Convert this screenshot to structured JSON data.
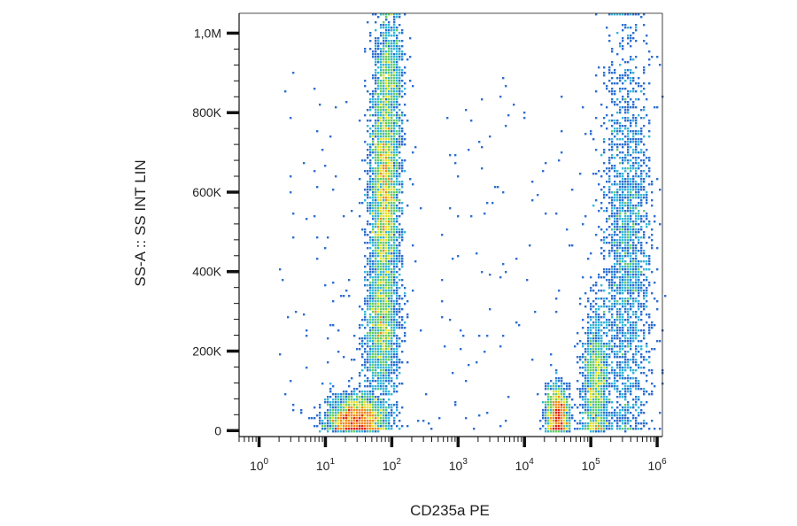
{
  "chart_data": {
    "type": "scatter",
    "subtype": "flow-cytometry-density-dot-plot",
    "xlabel": "CD235a PE",
    "ylabel": "SS-A :: SS INT LIN",
    "x_scale": "log",
    "y_scale": "linear",
    "xlim": [
      0.5,
      1200000
    ],
    "ylim": [
      -15000,
      1050000
    ],
    "x_ticks": [
      {
        "value": 1,
        "base": "10",
        "exp": "0"
      },
      {
        "value": 10,
        "base": "10",
        "exp": "1"
      },
      {
        "value": 100,
        "base": "10",
        "exp": "2"
      },
      {
        "value": 1000,
        "base": "10",
        "exp": "3"
      },
      {
        "value": 10000,
        "base": "10",
        "exp": "4"
      },
      {
        "value": 100000,
        "base": "10",
        "exp": "5"
      },
      {
        "value": 1000000,
        "base": "10",
        "exp": "6"
      }
    ],
    "y_ticks": [
      {
        "value": 0,
        "label": "0"
      },
      {
        "value": 200000,
        "label": "200K"
      },
      {
        "value": 400000,
        "label": "400K"
      },
      {
        "value": 600000,
        "label": "600K"
      },
      {
        "value": 800000,
        "label": "800K"
      },
      {
        "value": 1000000,
        "label": "1,0M"
      }
    ],
    "grid": false,
    "legend": "none",
    "density_colors": [
      "#2b3f9e",
      "#2e6fd0",
      "#35b6d9",
      "#66cc66",
      "#e6e032",
      "#f08a24",
      "#e0261c"
    ],
    "populations": [
      {
        "x_center": 30,
        "y_center": 30000,
        "count": 2600,
        "x_log_spread": 0.22,
        "y_spread": 28000
      },
      {
        "x_center": 70,
        "y_center": 250000,
        "count": 1500,
        "x_log_spread": 0.13,
        "y_spread": 90000
      },
      {
        "x_center": 80,
        "y_center": 600000,
        "count": 3800,
        "x_log_spread": 0.11,
        "y_spread": 160000
      },
      {
        "x_center": 95,
        "y_center": 900000,
        "count": 700,
        "x_log_spread": 0.1,
        "y_spread": 80000
      },
      {
        "x_center": 32000,
        "y_center": 40000,
        "count": 1400,
        "x_log_spread": 0.08,
        "y_spread": 35000
      },
      {
        "x_center": 120000,
        "y_center": 120000,
        "count": 1400,
        "x_log_spread": 0.1,
        "y_spread": 90000
      },
      {
        "x_center": 350000,
        "y_center": 450000,
        "count": 2300,
        "x_log_spread": 0.18,
        "y_spread": 260000
      }
    ]
  }
}
